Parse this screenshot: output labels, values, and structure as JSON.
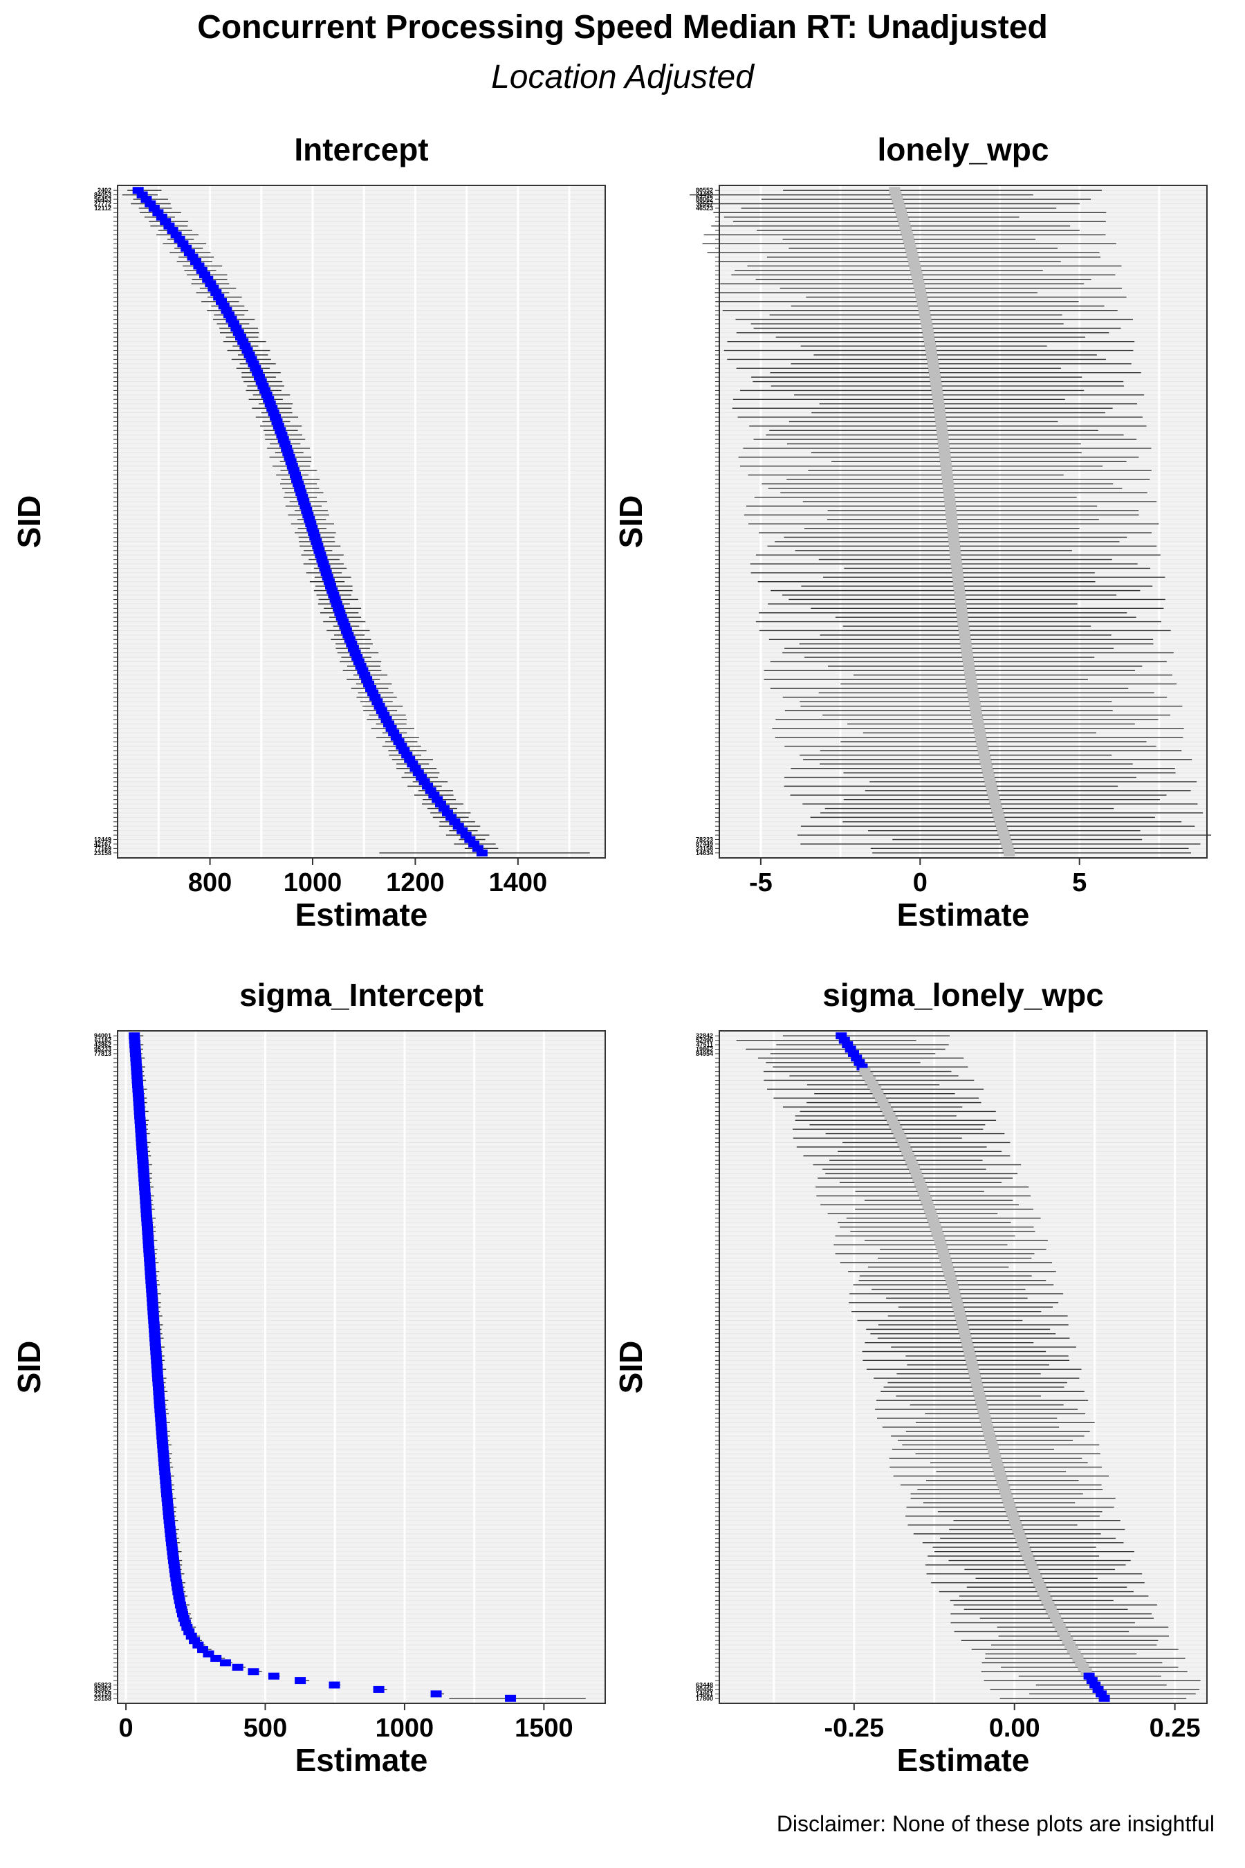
{
  "title": "Concurrent Processing Speed Median RT: Unadjusted",
  "subtitle": "Location Adjusted",
  "caption": "Disclaimer: None of these plots are insightful",
  "colors": {
    "significant": "#0000ff",
    "not_significant": "#bebebe",
    "interval": "#333333",
    "panel_bg": "#f2f2f2",
    "gridline": "#e0e0e0"
  },
  "chart_data": [
    {
      "type": "scatter",
      "title": "Intercept",
      "xlabel": "Estimate",
      "ylabel": "SID",
      "xlim": [
        620,
        1570
      ],
      "xticks": [
        800,
        1000,
        1200,
        1400
      ],
      "xtick_labels": [
        "800",
        "1000",
        "1200",
        "1400"
      ],
      "sid_labels_top": [
        "2402",
        "84053",
        "56453",
        "27772",
        "12112"
      ],
      "sid_labels_bottom": [
        "12449",
        "42167",
        "77169",
        "23158"
      ],
      "estimate_first": 660,
      "estimate_last": 1330,
      "estimate_profile": 1.0,
      "n_points": 150,
      "all_significant": true,
      "lower_halfwidth": 30,
      "upper_halfwidth": 35,
      "outlier": {
        "estimate": 1330,
        "lower": 1130,
        "upper": 1540
      }
    },
    {
      "type": "scatter",
      "title": "lonely_wpc",
      "xlabel": "Estimate",
      "ylabel": "SID",
      "xlim": [
        -6.3,
        9.0
      ],
      "xticks": [
        -5,
        0,
        5
      ],
      "xtick_labels": [
        "-5",
        "0",
        "5"
      ],
      "sid_labels_top": [
        "80552",
        "24492",
        "88062",
        "32557",
        "46523"
      ],
      "sid_labels_bottom": [
        "78223",
        "87449",
        "23158",
        "14634"
      ],
      "estimate_first": -0.8,
      "estimate_last": 2.8,
      "estimate_profile": 1.0,
      "n_points": 150,
      "all_significant": false,
      "lower_halfwidth": 5.0,
      "upper_halfwidth": 5.0,
      "outlier": {
        "estimate": 2.8,
        "lower": -1.5,
        "upper": 8.5
      }
    },
    {
      "type": "scatter",
      "title": "sigma_Intercept",
      "xlabel": "Estimate",
      "ylabel": "SID",
      "xlim": [
        -30,
        1720
      ],
      "xticks": [
        0,
        500,
        1000,
        1500
      ],
      "xtick_labels": [
        "0",
        "500",
        "1000",
        "1500"
      ],
      "sid_labels_top": [
        "94001",
        "61182",
        "43862",
        "95233",
        "77813"
      ],
      "sid_labels_bottom": [
        "65823",
        "83802",
        "23159",
        "23158"
      ],
      "estimate_first": 30,
      "estimate_last": 1380,
      "estimate_profile": 3.0,
      "n_points": 150,
      "all_significant": true,
      "lower_halfwidth": 15,
      "upper_halfwidth": 25,
      "outlier": {
        "estimate": 1380,
        "lower": 1160,
        "upper": 1650
      }
    },
    {
      "type": "scatter",
      "title": "sigma_lonely_wpc",
      "xlabel": "Estimate",
      "ylabel": "SID",
      "xlim": [
        -0.46,
        0.3
      ],
      "xticks": [
        -0.25,
        0.0,
        0.25
      ],
      "xtick_labels": [
        "-0.25",
        "0.00",
        "0.25"
      ],
      "sid_labels_top": [
        "32842",
        "52490",
        "47511",
        "19862",
        "84954"
      ],
      "sid_labels_bottom": [
        "63448",
        "80456",
        "14861",
        "17800"
      ],
      "estimate_first": -0.27,
      "estimate_last": 0.14,
      "estimate_profile": 1.0,
      "n_points": 150,
      "all_significant": false,
      "lower_halfwidth": 0.13,
      "upper_halfwidth": 0.13,
      "significant_estimates": [
        -0.27,
        -0.245,
        -0.235,
        -0.19,
        -0.175,
        -0.13,
        -0.125,
        -0.1,
        0.06,
        0.095,
        0.11,
        0.12,
        0.13,
        0.14
      ]
    }
  ]
}
